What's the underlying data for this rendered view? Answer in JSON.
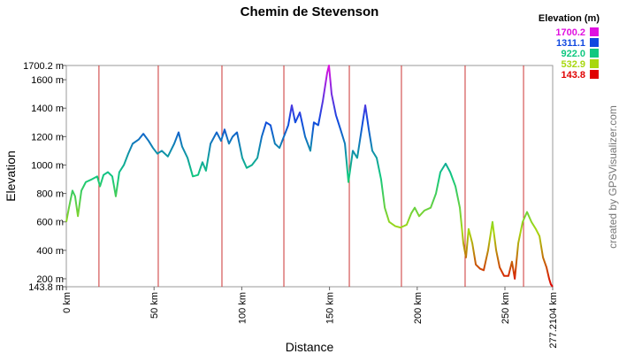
{
  "chart_data": {
    "type": "line",
    "title": "Chemin de Stevenson",
    "x_label": "Distance",
    "y_label": "Elevation",
    "credit": "created by GPSVisualizer.com",
    "xlim": [
      0,
      277.2104
    ],
    "ylim": [
      143.8,
      1700.2
    ],
    "xticks": [
      {
        "value": 0,
        "label": "0 km"
      },
      {
        "value": 50,
        "label": "50 km"
      },
      {
        "value": 100,
        "label": "100 km"
      },
      {
        "value": 150,
        "label": "150 km"
      },
      {
        "value": 200,
        "label": "200 km"
      },
      {
        "value": 250,
        "label": "250 km"
      },
      {
        "value": 277.2104,
        "label": "277.2104 km"
      }
    ],
    "yticks": [
      {
        "value": 143.8,
        "label": "143.8 m"
      },
      {
        "value": 200,
        "label": "200 m"
      },
      {
        "value": 400,
        "label": "400 m"
      },
      {
        "value": 600,
        "label": "600 m"
      },
      {
        "value": 800,
        "label": "800 m"
      },
      {
        "value": 1000,
        "label": "1000 m"
      },
      {
        "value": 1200,
        "label": "1200 m"
      },
      {
        "value": 1400,
        "label": "1400 m"
      },
      {
        "value": 1600,
        "label": "1600 m"
      },
      {
        "value": 1700.2,
        "label": "1700.2 m"
      }
    ],
    "vertical_lines": [
      18.6,
      52.4,
      88.7,
      124.0,
      161.3,
      191.0,
      227.3,
      260.6
    ],
    "vertical_line_color": "#cc3333",
    "color_scale": {
      "title": "Elevation (m)",
      "values": [
        1700.2,
        1311.1,
        922,
        532.9,
        143.8
      ],
      "value_labels": [
        "1700.2",
        "1311.1",
        "922.0",
        "532.9",
        "143.8"
      ],
      "colors": [
        "#e010e0",
        "#1048e0",
        "#10c880",
        "#a8d810",
        "#e00000"
      ]
    },
    "x": [
      0,
      1.5,
      3.5,
      5.0,
      6.6,
      8.6,
      11.1,
      14.6,
      17.6,
      19.2,
      21.2,
      23.7,
      26.2,
      28.2,
      30.2,
      32.8,
      35.3,
      37.8,
      41.3,
      43.9,
      46.9,
      49.4,
      51.9,
      54.4,
      57.9,
      61.5,
      64.0,
      66.0,
      69.1,
      72.1,
      75.1,
      77.6,
      79.6,
      82.2,
      85.7,
      88.2,
      90.2,
      92.7,
      94.8,
      97.3,
      100.3,
      102.8,
      105.8,
      108.9,
      111.4,
      113.9,
      116.4,
      118.9,
      121.5,
      124.0,
      126.5,
      128.5,
      130.5,
      133.1,
      136.1,
      139.1,
      141.1,
      143.6,
      146.2,
      148.7,
      149.7,
      151.2,
      153.7,
      156.3,
      158.8,
      160.8,
      163.3,
      165.8,
      168.3,
      170.4,
      172.4,
      174.4,
      176.9,
      179.4,
      181.5,
      184.0,
      187.5,
      190.5,
      194.0,
      196.6,
      198.6,
      201.1,
      204.1,
      207.7,
      210.7,
      213.2,
      216.2,
      218.8,
      221.8,
      224.3,
      226.3,
      227.8,
      229.3,
      231.4,
      233.4,
      235.9,
      237.9,
      240.4,
      242.9,
      245.0,
      247.0,
      249.5,
      252.0,
      254.0,
      255.6,
      257.6,
      260.1,
      262.6,
      265.1,
      267.6,
      269.7,
      271.7,
      273.7,
      275.2,
      276.2,
      277.2104
    ],
    "values": [
      600,
      700,
      820,
      780,
      640,
      820,
      880,
      900,
      920,
      850,
      930,
      950,
      920,
      780,
      950,
      1000,
      1080,
      1150,
      1180,
      1220,
      1170,
      1120,
      1080,
      1100,
      1060,
      1150,
      1230,
      1130,
      1050,
      920,
      930,
      1020,
      960,
      1150,
      1230,
      1170,
      1250,
      1150,
      1200,
      1230,
      1050,
      980,
      1000,
      1050,
      1200,
      1300,
      1280,
      1150,
      1120,
      1200,
      1280,
      1420,
      1300,
      1370,
      1200,
      1100,
      1300,
      1280,
      1450,
      1650,
      1700,
      1500,
      1350,
      1250,
      1150,
      880,
      1100,
      1050,
      1250,
      1420,
      1250,
      1100,
      1050,
      900,
      700,
      600,
      570,
      560,
      580,
      660,
      700,
      640,
      680,
      700,
      800,
      950,
      1010,
      950,
      850,
      700,
      450,
      350,
      550,
      450,
      300,
      270,
      260,
      400,
      600,
      400,
      280,
      220,
      220,
      320,
      200,
      450,
      600,
      670,
      600,
      550,
      500,
      350,
      280,
      200,
      160,
      143.8
    ]
  }
}
